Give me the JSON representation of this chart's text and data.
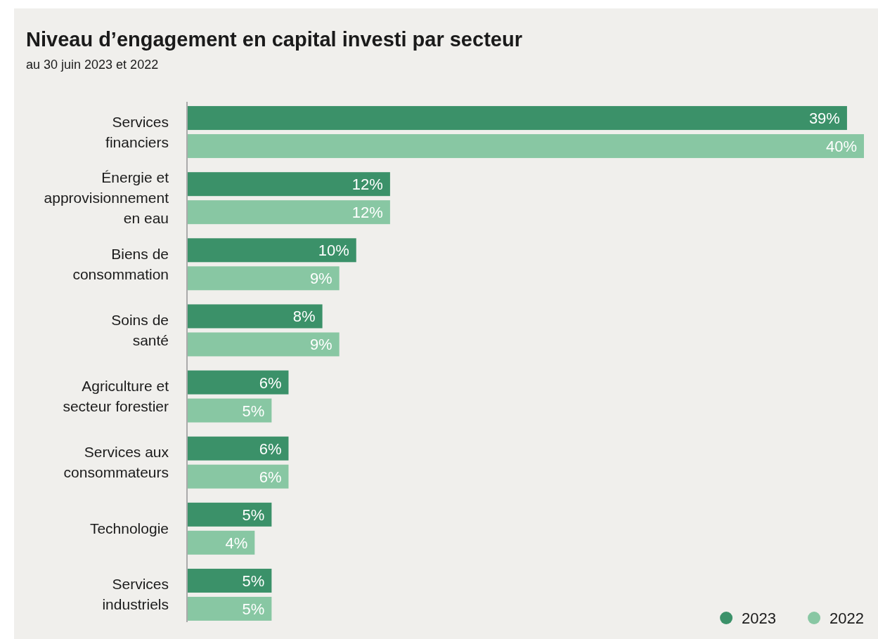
{
  "chart_data": {
    "type": "bar",
    "orientation": "horizontal",
    "title": "Niveau d’engagement en capital investi par secteur",
    "subtitle": "au 30 juin 2023 et 2022",
    "categories": [
      "Services\nfinanciers",
      "Énergie et\napprovisionnement\nen eau",
      "Biens de\nconsommation",
      "Soins de\nsanté",
      "Agriculture et\nsecteur forestier",
      "Services aux\nconsommateurs",
      "Technologie",
      "Services\nindustriels"
    ],
    "series": [
      {
        "name": "2023",
        "color": "#3b9169",
        "values": [
          39,
          12,
          10,
          8,
          6,
          6,
          5,
          5
        ],
        "value_labels": [
          "39%",
          "12%",
          "10%",
          "8%",
          "6%",
          "6%",
          "5%",
          "5%"
        ]
      },
      {
        "name": "2022",
        "color": "#88c7a3",
        "values": [
          40,
          12,
          9,
          9,
          5,
          6,
          4,
          5
        ],
        "value_labels": [
          "40%",
          "12%",
          "9%",
          "9%",
          "5%",
          "6%",
          "4%",
          "5%"
        ]
      }
    ],
    "legend": "bottom right"
  }
}
